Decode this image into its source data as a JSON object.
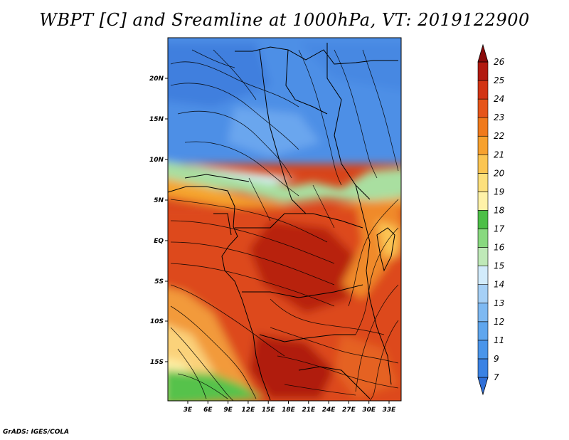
{
  "title": "WBPT [C] and Sreamline at 1000hPa, VT: 2019122900",
  "footer": "GrADS: IGES/COLA",
  "lat_labels": [
    "20N",
    "15N",
    "10N",
    "5N",
    "EQ",
    "5S",
    "10S",
    "15S"
  ],
  "lon_labels": [
    "3E",
    "6E",
    "9E",
    "12E",
    "15E",
    "18E",
    "21E",
    "24E",
    "27E",
    "30E",
    "33E"
  ],
  "colorbar": {
    "labels": [
      "7",
      "9",
      "11",
      "12",
      "13",
      "14",
      "15",
      "16",
      "17",
      "18",
      "19",
      "20",
      "21",
      "22",
      "23",
      "24",
      "25",
      "26"
    ],
    "colors": [
      "#2f6fd8",
      "#3a82e4",
      "#4a95ea",
      "#5fa6ee",
      "#7eb9f2",
      "#a6d0f6",
      "#d2ebfb",
      "#bfe9b8",
      "#88d97f",
      "#4cbf47",
      "#fff2a8",
      "#fde07c",
      "#fbc552",
      "#f7a12e",
      "#f07a1c",
      "#e6551a",
      "#d23414",
      "#b21a10",
      "#8a0a0a"
    ]
  },
  "colors": {
    "ocean_land_cold": "#4d8fe6",
    "hot": "#d8401a",
    "coast": "#000000"
  }
}
